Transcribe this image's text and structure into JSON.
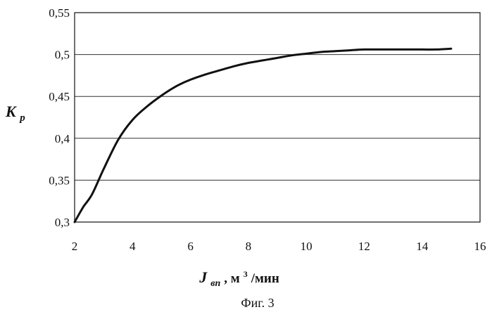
{
  "chart_data": {
    "type": "line",
    "xlim": [
      2,
      16
    ],
    "ylim": [
      0.3,
      0.55
    ],
    "x_ticks": [
      "2",
      "4",
      "6",
      "8",
      "10",
      "12",
      "14",
      "16"
    ],
    "y_ticks": [
      "0,3",
      "0,35",
      "0,4",
      "0,45",
      "0,5",
      "0,55"
    ],
    "grid": "horizontal",
    "ylabel": {
      "main": "K",
      "sub": "р"
    },
    "xlabel": {
      "main": "J",
      "sub": "вп",
      "unit_pre": ", м",
      "unit_sup": "3",
      "unit_post": "/мин"
    },
    "caption": "Фиг. 3",
    "series": [
      {
        "x": [
          2.0,
          2.3,
          2.6,
          3.0,
          3.5,
          4.0,
          4.5,
          5.0,
          5.5,
          6.0,
          6.5,
          7.0,
          7.5,
          8.0,
          8.5,
          9.0,
          9.5,
          10.0,
          10.5,
          11.0,
          11.5,
          12.0,
          12.5,
          13.0,
          13.5,
          14.0,
          14.5,
          15.0
        ],
        "y": [
          0.3,
          0.318,
          0.333,
          0.363,
          0.398,
          0.422,
          0.438,
          0.451,
          0.462,
          0.47,
          0.476,
          0.481,
          0.486,
          0.49,
          0.493,
          0.496,
          0.499,
          0.501,
          0.503,
          0.504,
          0.505,
          0.506,
          0.506,
          0.506,
          0.506,
          0.506,
          0.506,
          0.507
        ]
      }
    ]
  }
}
